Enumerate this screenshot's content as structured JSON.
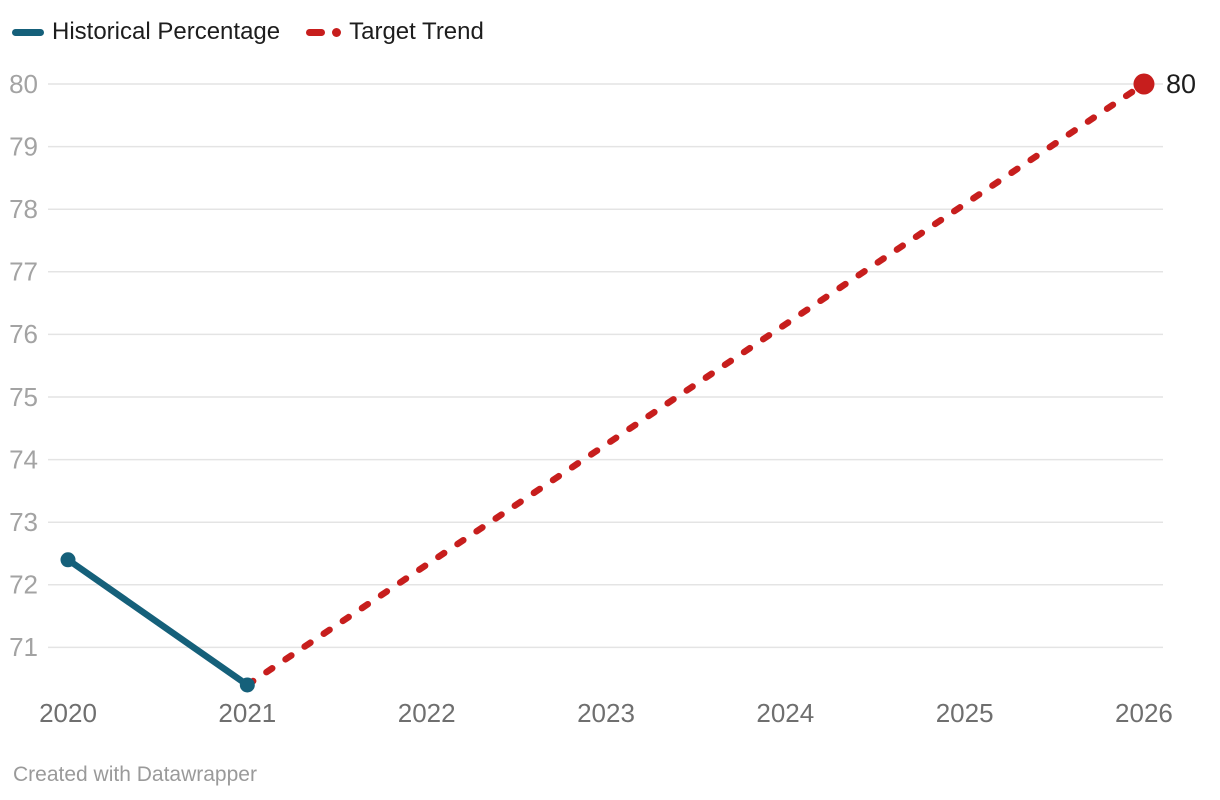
{
  "legend": {
    "items": [
      {
        "label": "Historical Percentage",
        "color": "#15607a",
        "style": "solid"
      },
      {
        "label": "Target Trend",
        "color": "#c71e1d",
        "style": "dashed"
      }
    ]
  },
  "chart_data": {
    "type": "line",
    "title": "",
    "xlabel": "",
    "ylabel": "",
    "x_ticks": [
      2020,
      2021,
      2022,
      2023,
      2024,
      2025,
      2026
    ],
    "y_ticks": [
      71,
      72,
      73,
      74,
      75,
      76,
      77,
      78,
      79,
      80
    ],
    "xlim": [
      2020,
      2026
    ],
    "ylim": [
      70.4,
      80
    ],
    "grid": true,
    "legend_position": "top-left",
    "series": [
      {
        "name": "Historical Percentage",
        "color": "#15607a",
        "style": "solid",
        "markers": "all",
        "marker_radius": 7.5,
        "points": [
          {
            "x": 2020,
            "y": 72.4
          },
          {
            "x": 2021,
            "y": 70.4
          }
        ]
      },
      {
        "name": "Target Trend",
        "color": "#c71e1d",
        "style": "dashed",
        "markers": "end",
        "marker_radius": 10.5,
        "end_label": "80",
        "points": [
          {
            "x": 2021,
            "y": 70.4
          },
          {
            "x": 2026,
            "y": 80
          }
        ]
      }
    ],
    "colors": {
      "grid_line": "#e4e4e4",
      "y_tick_label": "#a3a3a3",
      "x_tick_label": "#6f6f6f",
      "data_label": "#1d1d1d"
    }
  },
  "footer": {
    "credit": "Created with Datawrapper"
  }
}
